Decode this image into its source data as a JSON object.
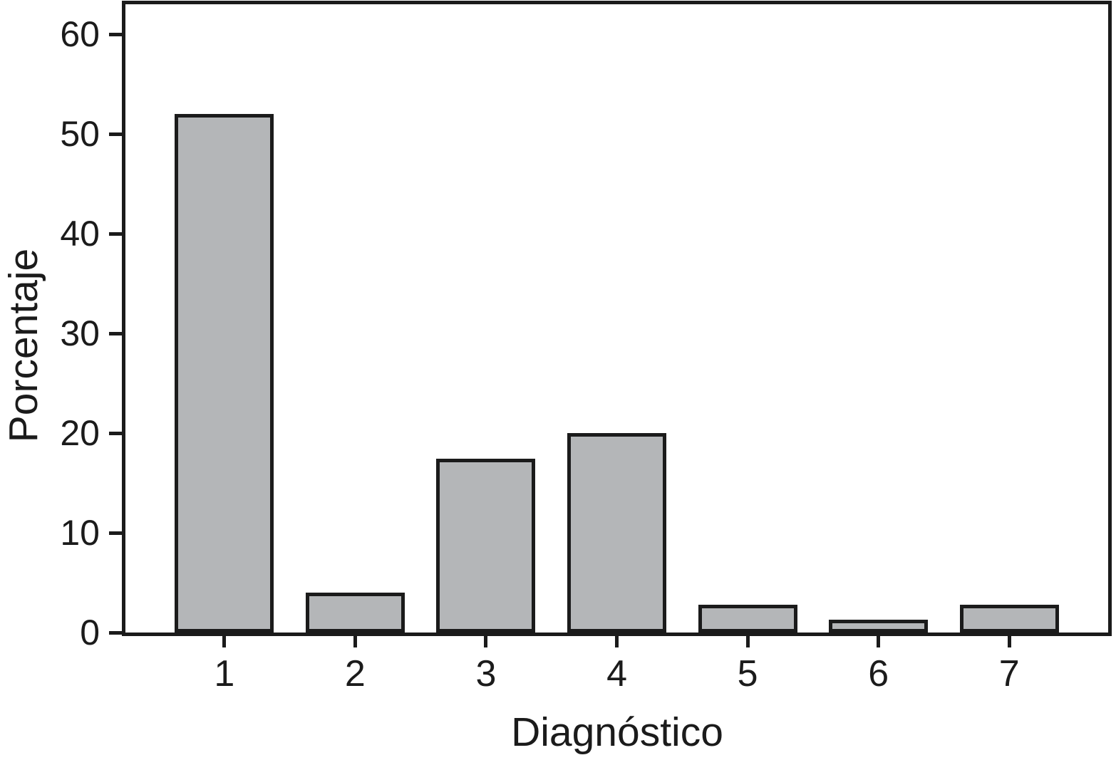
{
  "chart_data": {
    "type": "bar",
    "title": "",
    "categories": [
      "1",
      "2",
      "3",
      "4",
      "5",
      "6",
      "7"
    ],
    "values": [
      52,
      4,
      17.4,
      20,
      2.8,
      1.3,
      2.8
    ],
    "xlabel": "Diagnóstico",
    "ylabel": "Porcentaje",
    "yticks": [
      0,
      10,
      20,
      30,
      40,
      50,
      60
    ],
    "ylim": [
      0,
      63
    ],
    "grid": false,
    "legend": null,
    "bar_fill_color": "#b4b6b8",
    "line_color": "#1b1b1b"
  }
}
